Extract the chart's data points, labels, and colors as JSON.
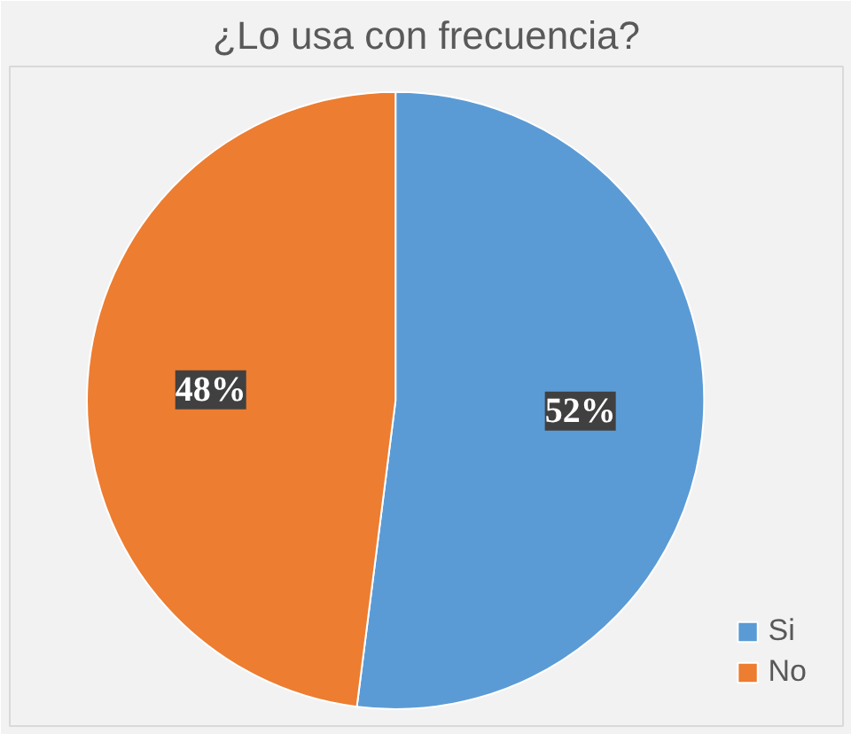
{
  "chart_data": {
    "type": "pie",
    "title": "¿Lo usa con frecuencia?",
    "categories": [
      "Si",
      "No"
    ],
    "values": [
      52,
      48
    ],
    "colors": [
      "#5b9bd5",
      "#ed7d31"
    ],
    "value_labels": [
      "52%",
      "48%"
    ],
    "legend": "bottom right"
  }
}
